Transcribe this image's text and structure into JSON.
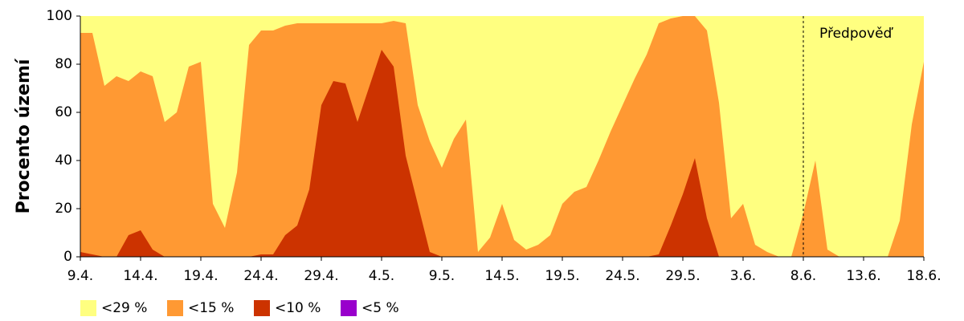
{
  "chart_data": {
    "type": "area",
    "y_label": "Procento území",
    "categories": [
      "9.4.",
      null,
      null,
      null,
      null,
      "14.4.",
      null,
      null,
      null,
      null,
      "19.4.",
      null,
      null,
      null,
      null,
      "24.4.",
      null,
      null,
      null,
      null,
      "29.4.",
      null,
      null,
      null,
      null,
      "4.5.",
      null,
      null,
      null,
      null,
      "9.5.",
      null,
      null,
      null,
      null,
      "14.5.",
      null,
      null,
      null,
      null,
      "19.5.",
      null,
      null,
      null,
      null,
      "24.5.",
      null,
      null,
      null,
      null,
      "29.5.",
      null,
      null,
      null,
      null,
      "3.6.",
      null,
      null,
      null,
      null,
      "8.6.",
      null,
      null,
      null,
      null,
      "13.6.",
      null,
      null,
      null,
      null,
      "18.6."
    ],
    "series": [
      {
        "name": "<29 %",
        "color": "#ffff80",
        "values": [
          100,
          100,
          100,
          100,
          100,
          100,
          100,
          100,
          100,
          100,
          100,
          100,
          100,
          100,
          100,
          100,
          100,
          100,
          100,
          100,
          100,
          100,
          100,
          100,
          100,
          100,
          100,
          100,
          100,
          100,
          100,
          100,
          100,
          100,
          100,
          100,
          100,
          100,
          100,
          100,
          100,
          100,
          100,
          100,
          100,
          100,
          100,
          100,
          100,
          100,
          100,
          100,
          100,
          100,
          100,
          100,
          100,
          100,
          100,
          100,
          100,
          100,
          100,
          100,
          100,
          100,
          100,
          100,
          100,
          100,
          100
        ]
      },
      {
        "name": "<15 %",
        "color": "#ff9933",
        "values": [
          93,
          93,
          71,
          75,
          73,
          77,
          75,
          56,
          60,
          79,
          81,
          22,
          12,
          35,
          88,
          94,
          94,
          96,
          97,
          97,
          97,
          97,
          97,
          97,
          97,
          97,
          98,
          97,
          63,
          48,
          37,
          49,
          57,
          2,
          8,
          22,
          7,
          3,
          5,
          9,
          22,
          27,
          29,
          40,
          52,
          63,
          74,
          84,
          97,
          99,
          100,
          100,
          94,
          64,
          16,
          22,
          5,
          2,
          0,
          0,
          18,
          40,
          3,
          0,
          0,
          0,
          0,
          0,
          15,
          55,
          81
        ]
      },
      {
        "name": "<10 %",
        "color": "#cc3300",
        "values": [
          2,
          1,
          0,
          0,
          9,
          11,
          3,
          0,
          0,
          0,
          0,
          0,
          0,
          0,
          0,
          1,
          1,
          9,
          13,
          28,
          63,
          73,
          72,
          56,
          71,
          86,
          79,
          42,
          22,
          2,
          0,
          0,
          0,
          0,
          0,
          0,
          0,
          0,
          0,
          0,
          0,
          0,
          0,
          0,
          0,
          0,
          0,
          0,
          1,
          13,
          26,
          41,
          16,
          0,
          0,
          0,
          0,
          0,
          0,
          0,
          0,
          0,
          0,
          0,
          0,
          0,
          0,
          0,
          0,
          0,
          0
        ]
      },
      {
        "name": "<5 %",
        "color": "#9900cc",
        "values": [
          0,
          0,
          0,
          0,
          0,
          0,
          0,
          0,
          0,
          0,
          0,
          0,
          0,
          0,
          0,
          0,
          0,
          0,
          0,
          0,
          0,
          0,
          0,
          0,
          0,
          0,
          0,
          0,
          0,
          0,
          0,
          0,
          0,
          0,
          0,
          0,
          0,
          0,
          0,
          0,
          0,
          0,
          0,
          0,
          0,
          0,
          0,
          0,
          0,
          0,
          0,
          0,
          0,
          0,
          0,
          0,
          0,
          0,
          0,
          0,
          0,
          0,
          0,
          0,
          0,
          0,
          0,
          0,
          0,
          0,
          0
        ]
      }
    ],
    "ylim": [
      0,
      100
    ],
    "yticks": [
      0,
      20,
      40,
      60,
      80,
      100
    ],
    "annotation": {
      "text": "Předpověď",
      "category": "8.6."
    },
    "legend": "bottom"
  }
}
